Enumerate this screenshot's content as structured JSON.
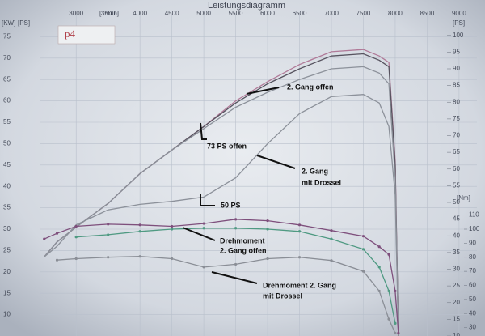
{
  "chart_data": {
    "type": "line",
    "title": "Leistungsdiagramm",
    "x_label": "[1/min]",
    "y_label": "[KW]",
    "y2_label": "[PS]",
    "y3_label": "[Nm]",
    "logo": "p4",
    "x": [
      2500,
      2700,
      3000,
      3500,
      4000,
      4500,
      5000,
      5500,
      6000,
      6500,
      7000,
      7500,
      7750,
      7900,
      8000,
      8050
    ],
    "xlim": [
      2440,
      9280
    ],
    "xticks": [
      3000,
      3500,
      4000,
      4500,
      5000,
      5500,
      6000,
      6500,
      7000,
      7500,
      8000,
      8500,
      9000
    ],
    "ylim": [
      5,
      80
    ],
    "yticks": [
      10,
      15,
      20,
      25,
      30,
      35,
      40,
      45,
      50,
      55,
      60,
      65,
      70,
      75
    ],
    "y2lim": [
      10,
      106
    ],
    "y2ticks": [
      10,
      15,
      20,
      25,
      30,
      35,
      40,
      45,
      50,
      55,
      60,
      65,
      70,
      75,
      80,
      85,
      90,
      95,
      100
    ],
    "y3lim": [
      24,
      252
    ],
    "y3ticks": [
      30,
      40,
      50,
      60,
      70,
      80,
      90,
      100,
      110
    ],
    "grid": true,
    "series": [
      {
        "color": "#b07a98",
        "values": [
          23.5,
          27,
          30.5,
          36,
          43,
          48.5,
          54,
          60,
          64.5,
          68.5,
          71.5,
          72,
          70.5,
          69,
          46,
          5
        ]
      },
      {
        "color": "#57535f",
        "values": [
          23.5,
          27,
          30.5,
          36,
          43,
          48.5,
          54,
          59.5,
          64,
          67.5,
          70.5,
          71,
          69.5,
          68,
          45,
          5
        ]
      },
      {
        "color": "#8c919a",
        "values": [
          23.5,
          27,
          30.5,
          36,
          43,
          48.5,
          53.5,
          58.5,
          62,
          65,
          67.5,
          68,
          66.5,
          64,
          42,
          5
        ]
      },
      {
        "color": "#8c919a",
        "values": [
          23.5,
          26,
          31,
          34.5,
          35.8,
          36.5,
          37.5,
          42,
          50,
          57,
          61,
          61.5,
          59.5,
          54,
          38,
          5
        ]
      },
      {
        "color": "#7e4f7c",
        "axis": "y3",
        "markers": true,
        "values": [
          93,
          97,
          102,
          103.5,
          103,
          102,
          104,
          107,
          106,
          103,
          99,
          95,
          87.5,
          82,
          56,
          26
        ]
      },
      {
        "color": "#4f9a82",
        "axis": "y3",
        "markers": true,
        "values": [
          null,
          null,
          94.4,
          96,
          98.4,
          100,
          100.7,
          100.7,
          100,
          98.4,
          93,
          85.7,
          73,
          56,
          33,
          null
        ]
      },
      {
        "color": "#8a8e96",
        "axis": "y3",
        "markers": true,
        "values": [
          null,
          78,
          79,
          80,
          80.6,
          79,
          73,
          75,
          79,
          80,
          77.7,
          70,
          56,
          36,
          26,
          null
        ]
      }
    ],
    "annotations": [
      "2. Gang offen",
      "73 PS offen",
      "2. Gang",
      "mit Drossel",
      "50 PS",
      "Drehmoment",
      "2. Gang offen",
      "Drehmoment 2. Gang",
      "mit Drossel"
    ]
  }
}
